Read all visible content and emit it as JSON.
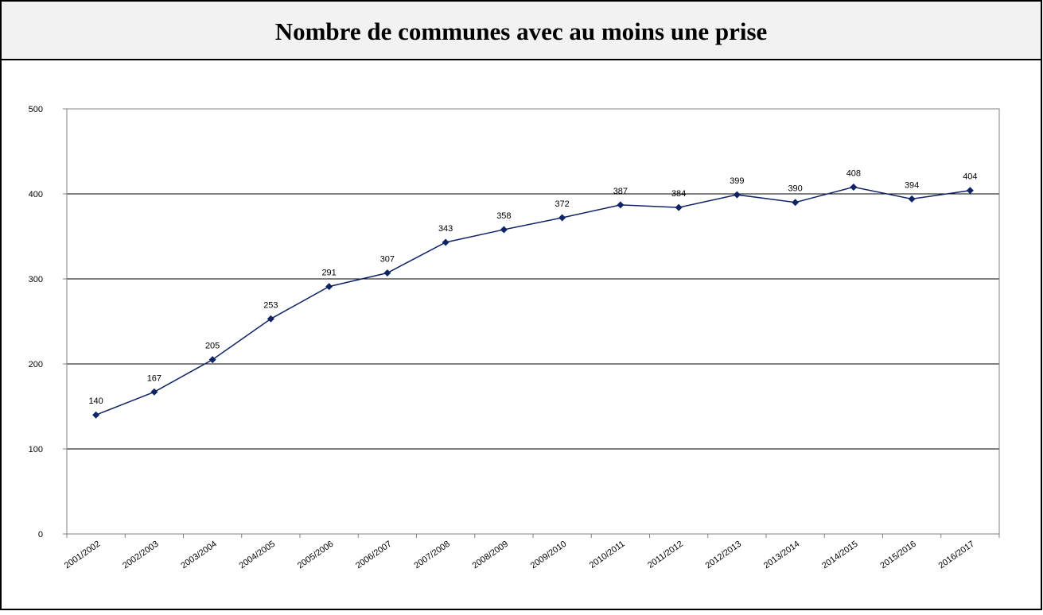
{
  "chart_data": {
    "type": "line",
    "title": "Nombre de communes avec au moins une prise",
    "categories": [
      "2001/2002",
      "2002/2003",
      "2003/2004",
      "2004/2005",
      "2005/2006",
      "2006/2007",
      "2007/2008",
      "2008/2009",
      "2009/2010",
      "2010/2011",
      "2011/2012",
      "2012/2013",
      "2013/2014",
      "2014/2015",
      "2015/2016",
      "2016/2017"
    ],
    "values": [
      140,
      167,
      205,
      253,
      291,
      307,
      343,
      358,
      372,
      387,
      384,
      399,
      390,
      408,
      394,
      404
    ],
    "color": "#0f2466",
    "ylim": [
      0,
      500
    ],
    "yticks": [
      0,
      100,
      200,
      300,
      400,
      500
    ],
    "grid": true
  }
}
